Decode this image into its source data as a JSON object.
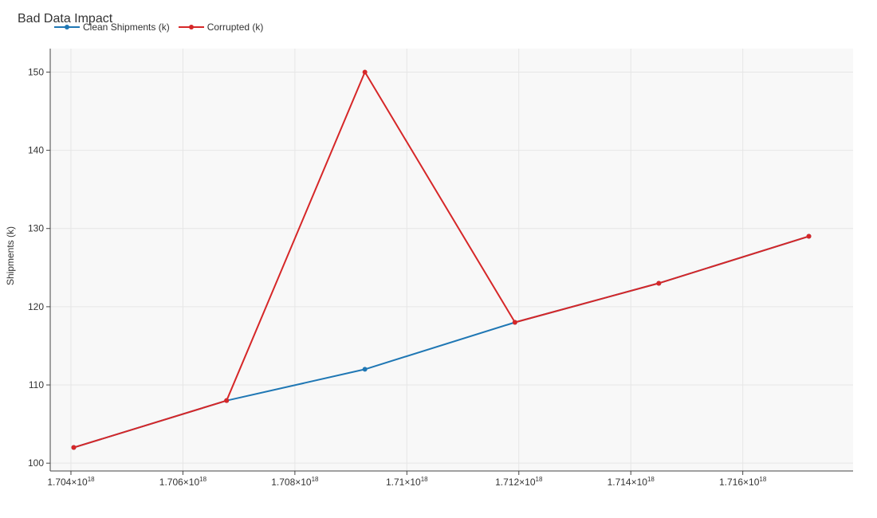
{
  "chart_data": {
    "type": "line",
    "title": "Bad Data Impact",
    "xlabel": "",
    "ylabel": "Shipments (k)",
    "xlim": [
      1.70363e+18,
      1.71797e+18
    ],
    "ylim": [
      99,
      153
    ],
    "x_ticks": [
      {
        "value": 1.704e+18,
        "mantissa": "1.704",
        "exp": "18"
      },
      {
        "value": 1.706e+18,
        "mantissa": "1.706",
        "exp": "18"
      },
      {
        "value": 1.708e+18,
        "mantissa": "1.708",
        "exp": "18"
      },
      {
        "value": 1.71e+18,
        "mantissa": "1.71",
        "exp": "18"
      },
      {
        "value": 1.712e+18,
        "mantissa": "1.712",
        "exp": "18"
      },
      {
        "value": 1.714e+18,
        "mantissa": "1.714",
        "exp": "18"
      },
      {
        "value": 1.716e+18,
        "mantissa": "1.716",
        "exp": "18"
      }
    ],
    "y_ticks": [
      100,
      110,
      120,
      130,
      140,
      150
    ],
    "grid": true,
    "legend_position": "top-left",
    "series": [
      {
        "name": "Clean Shipments (k)",
        "color": "#1f77b4",
        "x": [
          1.70405e+18,
          1.70678e+18,
          1.70925e+18,
          1.71193e+18,
          1.7145e+18,
          1.71718e+18
        ],
        "y": [
          102,
          108,
          112,
          118,
          123,
          129
        ]
      },
      {
        "name": "Corrupted (k)",
        "color": "#d62728",
        "x": [
          1.70405e+18,
          1.70678e+18,
          1.70925e+18,
          1.71193e+18,
          1.7145e+18,
          1.71718e+18
        ],
        "y": [
          102,
          108,
          150,
          118,
          123,
          129
        ]
      }
    ]
  }
}
